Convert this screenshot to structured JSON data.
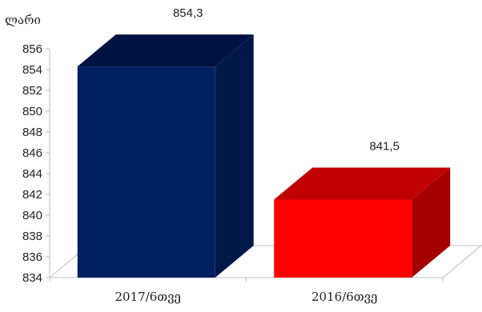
{
  "chart_data": {
    "type": "bar",
    "ylabel": "ლარი",
    "categories": [
      "2017/6თვე",
      "2016/6თვე"
    ],
    "values": [
      854.3,
      841.5
    ],
    "data_labels": [
      "854,3",
      "841,5"
    ],
    "ylim": [
      834,
      856
    ],
    "yticks": [
      856,
      854,
      852,
      850,
      848,
      846,
      844,
      842,
      840,
      838,
      836,
      834
    ],
    "colors": [
      {
        "front": "#002060",
        "top": "#001240",
        "side": "#001848"
      },
      {
        "front": "#ff0000",
        "top": "#c00000",
        "side": "#a50000"
      }
    ],
    "grid": false,
    "legend": "none",
    "style": "3d-bar"
  }
}
